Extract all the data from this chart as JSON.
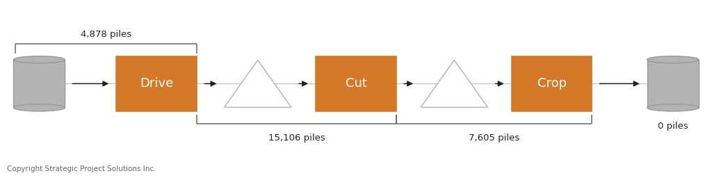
{
  "copyright": "Copyright Strategic Project Solutions Inc.",
  "background_color": "#ffffff",
  "cylinder_color": "#b3b3b3",
  "cylinder_edge_color": "#999999",
  "box_color": "#d4782a",
  "box_edge_color": "#d4782a",
  "box_text_color": "#ffffff",
  "triangle_face_color": "#ffffff",
  "triangle_edge_color": "#aab0cc",
  "arrow_color": "#222222",
  "boxes": [
    "Drive",
    "Cut",
    "Crop"
  ],
  "annotation_top_text": "4,878 piles",
  "annotation_bot1_text": "15,106 piles",
  "annotation_bot2_text": "7,605 piles",
  "label_right": "0 piles",
  "figsize": [
    10.24,
    2.56
  ],
  "dpi": 100
}
